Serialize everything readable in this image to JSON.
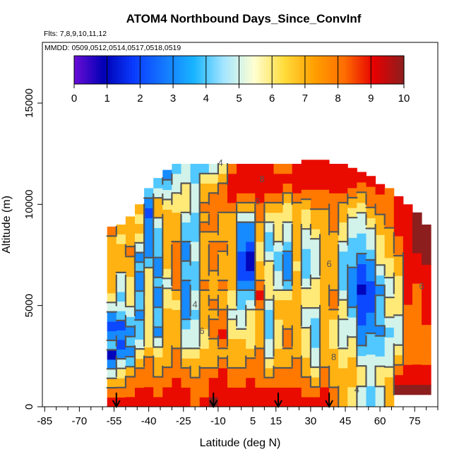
{
  "chart_data": {
    "type": "heatmap",
    "title": "ATOM4 Northbound Days_Since_ConvInf",
    "flights_note": "Flts: 7,8,9,10,11,12",
    "dates_note": "MMDD: 0509,0512,0514,0517,0518,0519",
    "xlabel": "Latitude (deg N)",
    "ylabel": "Altitude (m)",
    "xlim": [
      -86,
      85
    ],
    "ylim": [
      0,
      18000
    ],
    "x_ticks": [
      -85,
      -70,
      -55,
      -40,
      -25,
      -10,
      5,
      15,
      30,
      45,
      60,
      75
    ],
    "x_tick_labels": [
      "-85",
      "-70",
      "-55",
      "-40",
      "-25",
      "-10",
      "5",
      "15",
      "30",
      "45",
      "60",
      "75"
    ],
    "x_minor_ticks": [
      -80,
      -75,
      -65,
      -60,
      -50,
      -45,
      -35,
      -30,
      -20,
      -15,
      -5,
      0,
      10,
      20,
      25,
      35,
      40,
      50,
      55,
      65,
      70,
      80,
      85
    ],
    "y_ticks": [
      0,
      5000,
      10000,
      15000
    ],
    "y_tick_labels": [
      "0",
      "5000",
      "10000",
      "15000"
    ],
    "colorbar": {
      "min": 0,
      "max": 10,
      "ticks": [
        0,
        1,
        2,
        3,
        4,
        5,
        6,
        7,
        8,
        9,
        10
      ],
      "tick_labels": [
        "0",
        "1",
        "2",
        "3",
        "4",
        "5",
        "6",
        "7",
        "8",
        "9",
        "10"
      ],
      "colors": [
        "#6a0dd6",
        "#0000b4",
        "#0a3cff",
        "#1478ff",
        "#19b4ff",
        "#a5e6ff",
        "#ffffd2",
        "#ffdc3c",
        "#ffa000",
        "#ff6e00",
        "#e60000",
        "#8c1e1e"
      ]
    },
    "profile_markers_latitude": [
      -54,
      -12,
      16,
      38
    ],
    "contour_levels_labeled": [
      4,
      6,
      8
    ],
    "contour_labels": [
      {
        "text": "4",
        "lat": -9,
        "alt": 11900
      },
      {
        "text": "8",
        "lat": 9,
        "alt": 11100
      },
      {
        "text": "6",
        "lat": 7,
        "alt": 10000
      },
      {
        "text": "6",
        "lat": 38,
        "alt": 6900
      },
      {
        "text": "4",
        "lat": -20,
        "alt": 4900
      },
      {
        "text": "6",
        "lat": -17,
        "alt": 3600
      },
      {
        "text": "8",
        "lat": 40,
        "alt": 2300
      },
      {
        "text": "6",
        "lat": 78,
        "alt": 5800
      },
      {
        "text": "4",
        "lat": 50,
        "alt": 700
      }
    ],
    "columns": [
      {
        "lat": -56,
        "bottom": 0,
        "top": 8900,
        "values": [
          9,
          8,
          7,
          5,
          3,
          1,
          4,
          3,
          2,
          3,
          5,
          6,
          7,
          7,
          7,
          7,
          7,
          7,
          8
        ]
      },
      {
        "lat": -52,
        "bottom": 0,
        "top": 9000,
        "values": [
          9,
          8,
          7,
          6,
          5,
          3,
          2,
          3,
          2,
          4,
          5,
          4,
          5,
          5,
          7,
          7,
          7,
          6,
          7
        ]
      },
      {
        "lat": -48,
        "bottom": 0,
        "top": 9400,
        "values": [
          9,
          8,
          8,
          7,
          4,
          3,
          4,
          3,
          4,
          5,
          6,
          6,
          6,
          7,
          7,
          8,
          7,
          7,
          7
        ]
      },
      {
        "lat": -44,
        "bottom": 0,
        "top": 10000,
        "values": [
          9,
          9,
          8,
          8,
          7,
          6,
          5,
          4,
          4,
          3,
          4,
          4,
          3,
          3,
          4,
          3,
          5,
          6,
          7,
          6,
          7
        ]
      },
      {
        "lat": -40,
        "bottom": 0,
        "top": 10800,
        "values": [
          9,
          9,
          8,
          8,
          8,
          7,
          6,
          6,
          6,
          6,
          6,
          6,
          6,
          6,
          4,
          3,
          3,
          3,
          3,
          2,
          3,
          4
        ]
      },
      {
        "lat": -36,
        "bottom": 0,
        "top": 11300,
        "values": [
          9,
          8,
          8,
          7,
          7,
          6,
          5,
          3,
          4,
          4,
          3,
          3,
          4,
          3,
          3,
          4,
          4,
          4,
          5,
          7,
          7,
          5,
          4
        ]
      },
      {
        "lat": -32,
        "bottom": 0,
        "top": 11700,
        "values": [
          9,
          9,
          8,
          8,
          7,
          7,
          7,
          7,
          7,
          7,
          6,
          6,
          5,
          6,
          7,
          7,
          7,
          7,
          7,
          7,
          6,
          5,
          4,
          3
        ]
      },
      {
        "lat": -28,
        "bottom": 0,
        "top": 12000,
        "values": [
          9,
          9,
          9,
          8,
          8,
          8,
          7,
          7,
          7,
          7,
          6,
          7,
          8,
          8,
          8,
          8,
          8,
          7,
          7,
          7,
          6,
          6,
          5,
          5,
          4
        ]
      },
      {
        "lat": -24,
        "bottom": 0,
        "top": 12000,
        "values": [
          9,
          9,
          8,
          8,
          7,
          6,
          5,
          5,
          4,
          3,
          3,
          3,
          3,
          4,
          4,
          3,
          3,
          4,
          4,
          5,
          6,
          6,
          6,
          5,
          5
        ]
      },
      {
        "lat": -20,
        "bottom": 0,
        "top": 12000,
        "values": [
          8,
          8,
          8,
          7,
          7,
          6,
          5,
          5,
          5,
          4,
          5,
          5,
          4,
          4,
          4,
          5,
          5,
          4,
          4,
          4,
          5,
          5,
          5,
          4,
          4
        ]
      },
      {
        "lat": -16,
        "bottom": 0,
        "top": 12000,
        "values": [
          9,
          8,
          8,
          8,
          7,
          7,
          6,
          6,
          7,
          7,
          7,
          7,
          8,
          7,
          7,
          7,
          7,
          7,
          8,
          7,
          8,
          7,
          7,
          6,
          4
        ]
      },
      {
        "lat": -12,
        "bottom": 0,
        "top": 12000,
        "values": [
          10,
          9,
          9,
          8,
          7,
          7,
          7,
          8,
          8,
          7,
          8,
          7,
          7,
          7,
          8,
          8,
          8,
          7,
          8,
          8,
          8,
          8,
          7,
          6,
          5
        ]
      },
      {
        "lat": -8,
        "bottom": 0,
        "top": 12000,
        "values": [
          9,
          9,
          9,
          9,
          8,
          7,
          8,
          9,
          8,
          8,
          7,
          7,
          8,
          7,
          7,
          7,
          8,
          7,
          7,
          7,
          8,
          8,
          8,
          7,
          6
        ]
      },
      {
        "lat": -4,
        "bottom": 0,
        "top": 12000,
        "values": [
          9,
          9,
          8,
          8,
          7,
          7,
          7,
          6,
          6,
          5,
          6,
          6,
          7,
          7,
          7,
          7,
          7,
          7,
          7,
          7,
          8,
          9,
          9,
          9,
          8
        ]
      },
      {
        "lat": 0,
        "bottom": 0,
        "top": 12000,
        "values": [
          9,
          9,
          8,
          8,
          7,
          7,
          7,
          6,
          5,
          5,
          4,
          4,
          3,
          2,
          2,
          2,
          3,
          3,
          3,
          5,
          7,
          8,
          9,
          9,
          9
        ]
      },
      {
        "lat": 4,
        "bottom": 0,
        "top": 12000,
        "values": [
          9,
          9,
          9,
          8,
          8,
          7,
          6,
          6,
          6,
          6,
          5,
          4,
          3,
          2,
          1,
          1,
          2,
          3,
          3,
          5,
          7,
          8,
          9,
          9,
          9
        ]
      },
      {
        "lat": 8,
        "bottom": 0,
        "top": 12000,
        "values": [
          9,
          9,
          8,
          8,
          8,
          8,
          7,
          7,
          7,
          7,
          8,
          9,
          8,
          7,
          7,
          6,
          6,
          7,
          7,
          8,
          8,
          9,
          9,
          9,
          9
        ]
      },
      {
        "lat": 12,
        "bottom": 0,
        "top": 12000,
        "values": [
          9,
          9,
          8,
          7,
          6,
          5,
          5,
          4,
          4,
          4,
          5,
          6,
          6,
          6,
          6,
          5,
          4,
          4,
          5,
          6,
          7,
          8,
          9,
          9,
          9
        ]
      },
      {
        "lat": 16,
        "bottom": 0,
        "top": 12000,
        "values": [
          9,
          9,
          8,
          8,
          7,
          7,
          6,
          6,
          6,
          7,
          7,
          6,
          5,
          5,
          4,
          4,
          5,
          6,
          6,
          6,
          7,
          8,
          9,
          9,
          8
        ]
      },
      {
        "lat": 20,
        "bottom": 0,
        "top": 12000,
        "values": [
          9,
          9,
          8,
          8,
          7,
          7,
          8,
          8,
          7,
          7,
          7,
          6,
          4,
          3,
          3,
          3,
          4,
          5,
          5,
          6,
          6,
          7,
          8,
          9,
          8
        ]
      },
      {
        "lat": 24,
        "bottom": 0,
        "top": 12000,
        "values": [
          9,
          9,
          8,
          8,
          8,
          7,
          7,
          7,
          7,
          7,
          7,
          7,
          7,
          7,
          6,
          7,
          7,
          7,
          7,
          7,
          7,
          8,
          9,
          9,
          9
        ]
      },
      {
        "lat": 28,
        "bottom": 0,
        "top": 12200,
        "values": [
          9,
          8,
          8,
          7,
          7,
          6,
          6,
          6,
          5,
          5,
          6,
          6,
          5,
          4,
          4,
          4,
          5,
          5,
          6,
          6,
          7,
          8,
          9,
          9,
          9
        ]
      },
      {
        "lat": 32,
        "bottom": 0,
        "top": 12200,
        "values": [
          9,
          8,
          7,
          6,
          5,
          5,
          4,
          4,
          4,
          5,
          6,
          6,
          6,
          5,
          5,
          5,
          5,
          6,
          7,
          7,
          8,
          8,
          9,
          9,
          9
        ]
      },
      {
        "lat": 36,
        "bottom": 0,
        "top": 12200,
        "values": [
          9,
          9,
          8,
          8,
          7,
          7,
          7,
          7,
          7,
          7,
          7,
          7,
          7,
          7,
          7,
          7,
          7,
          7,
          7,
          7,
          8,
          8,
          9,
          9,
          9
        ]
      },
      {
        "lat": 40,
        "bottom": 0,
        "top": 12000,
        "values": [
          8,
          8,
          7,
          7,
          7,
          7,
          6,
          6,
          6,
          7,
          8,
          8,
          7,
          7,
          7,
          7,
          7,
          7,
          8,
          8,
          8,
          8,
          9,
          9,
          9
        ]
      },
      {
        "lat": 44,
        "bottom": 0,
        "top": 12000,
        "values": [
          7,
          7,
          7,
          7,
          6,
          6,
          5,
          5,
          5,
          6,
          6,
          5,
          4,
          4,
          4,
          4,
          5,
          6,
          6,
          7,
          7,
          8,
          9,
          9,
          9
        ]
      },
      {
        "lat": 48,
        "bottom": 0,
        "top": 11800,
        "values": [
          6,
          6,
          7,
          7,
          7,
          6,
          6,
          5,
          5,
          4,
          3,
          3,
          3,
          3,
          4,
          4,
          4,
          5,
          5,
          6,
          7,
          8,
          9,
          9
        ]
      },
      {
        "lat": 52,
        "bottom": 0,
        "top": 11600,
        "values": [
          5,
          5,
          6,
          6,
          5,
          4,
          3,
          3,
          2,
          2,
          2,
          1,
          2,
          2,
          3,
          4,
          4,
          5,
          5,
          6,
          7,
          8,
          9
        ]
      },
      {
        "lat": 56,
        "bottom": 0,
        "top": 11400,
        "values": [
          4,
          4,
          5,
          5,
          5,
          4,
          4,
          3,
          3,
          2,
          2,
          2,
          3,
          3,
          4,
          5,
          5,
          6,
          7,
          8,
          8,
          9
        ]
      },
      {
        "lat": 60,
        "bottom": 0,
        "top": 11000,
        "values": [
          5,
          5,
          6,
          6,
          5,
          4,
          4,
          3,
          4,
          4,
          4,
          3,
          4,
          5,
          6,
          6,
          6,
          7,
          7,
          8,
          8,
          9
        ]
      },
      {
        "lat": 64,
        "bottom": 0,
        "top": 10800,
        "values": [
          7,
          7,
          7,
          6,
          5,
          5,
          5,
          4,
          5,
          6,
          6,
          5,
          5,
          6,
          6,
          7,
          7,
          7,
          8,
          8,
          8,
          8
        ]
      },
      {
        "lat": 68,
        "bottom": 600,
        "top": 10400,
        "values": [
          10,
          9,
          8,
          7,
          6,
          5,
          5,
          5,
          6,
          6,
          6,
          6,
          7,
          7,
          8,
          8,
          9,
          9,
          9,
          9
        ]
      },
      {
        "lat": 72,
        "bottom": 600,
        "top": 10000,
        "values": [
          10,
          9,
          9,
          8,
          8,
          8,
          8,
          8,
          8,
          9,
          9,
          9,
          9,
          9,
          9,
          9,
          9,
          9,
          9
        ]
      },
      {
        "lat": 76,
        "bottom": 600,
        "top": 9600,
        "values": [
          10,
          9,
          9,
          8,
          8,
          8,
          8,
          8,
          8,
          8,
          8,
          9,
          9,
          9,
          10,
          10,
          10,
          10
        ]
      },
      {
        "lat": 80,
        "bottom": 600,
        "top": 9000,
        "values": [
          10,
          9,
          9,
          8,
          8,
          8,
          8,
          9,
          9,
          9,
          9,
          9,
          9,
          10,
          10,
          10,
          10
        ]
      }
    ]
  }
}
